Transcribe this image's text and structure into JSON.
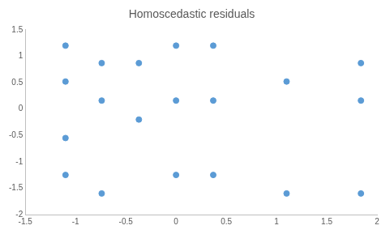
{
  "chart_data": {
    "type": "scatter",
    "title": "Homoscedastic residuals",
    "x": [
      -1.1,
      -1.1,
      -1.1,
      -1.1,
      -0.74,
      -0.74,
      -0.74,
      -0.37,
      -0.37,
      0,
      0,
      0,
      0.37,
      0.37,
      0.37,
      1.1,
      1.1,
      1.84,
      1.84,
      1.84
    ],
    "values": [
      1.2,
      0.52,
      -0.55,
      -1.25,
      0.87,
      0.16,
      -1.6,
      0.87,
      -0.2,
      1.2,
      0.16,
      -1.25,
      1.2,
      0.16,
      -1.25,
      0.52,
      -1.6,
      0.87,
      0.16,
      -1.6
    ],
    "color": "#5b9bd5",
    "marker": "circle",
    "xlim": [
      -1.5,
      2
    ],
    "xticks": [
      -1.5,
      -1,
      -0.5,
      0,
      0.5,
      1,
      1.5,
      2
    ],
    "ylim": [
      -2,
      1.5
    ],
    "yticks": [
      -2,
      -1.5,
      -1,
      -0.5,
      0,
      0.5,
      1,
      1.5
    ],
    "grid": false
  }
}
